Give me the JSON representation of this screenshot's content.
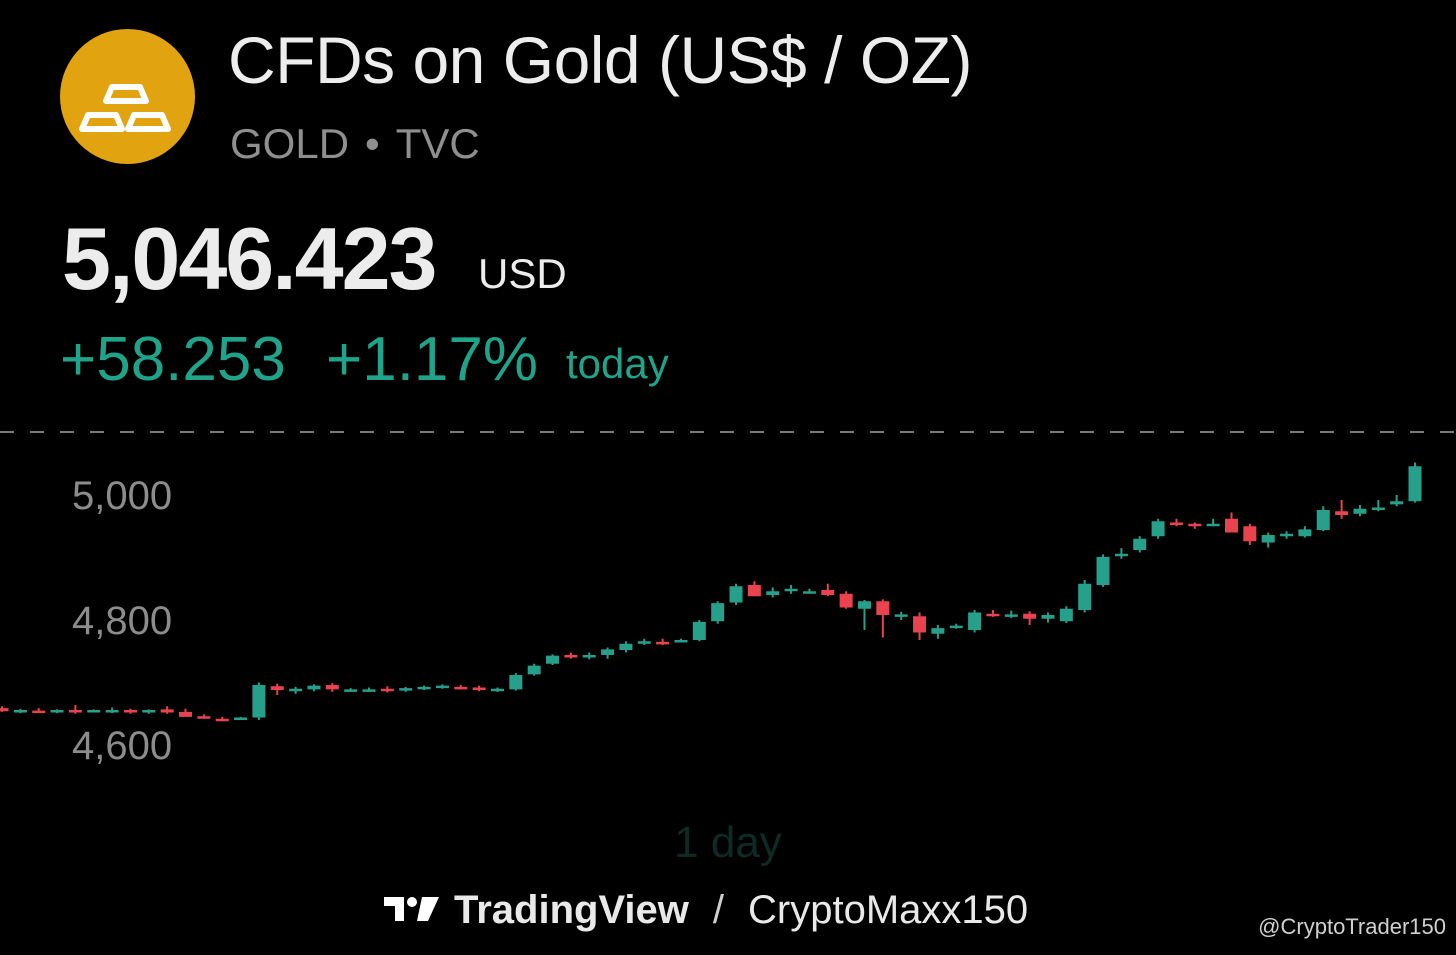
{
  "header": {
    "title": "CFDs on Gold (US$ / OZ)",
    "symbol": "GOLD",
    "separator": "•",
    "exchange": "TVC",
    "logo_icon": "gold-bars-icon",
    "logo_color": "#e2a311"
  },
  "quote": {
    "price": "5,046.423",
    "currency": "USD",
    "change": "+58.253",
    "change_percent": "+1.17%",
    "period_label": "today",
    "up_color": "#1fa389"
  },
  "chart_data": {
    "type": "candlestick",
    "ylim": [
      4530,
      5100
    ],
    "ticks": [
      4600,
      4800,
      5000
    ],
    "tick_labels": [
      "4,600",
      "4,800",
      "5,000"
    ],
    "last_price": 5046.4,
    "up_color": "#26a08a",
    "down_color": "#e8434f",
    "candles": [
      [
        4659,
        4662,
        4653,
        4654
      ],
      [
        4653,
        4658,
        4651,
        4656
      ],
      [
        4655,
        4659,
        4652,
        4653
      ],
      [
        4653,
        4657,
        4651,
        4656
      ],
      [
        4656,
        4664,
        4650,
        4652
      ],
      [
        4655,
        4657,
        4653,
        4656
      ],
      [
        4654,
        4660,
        4651,
        4656
      ],
      [
        4656,
        4658,
        4650,
        4655
      ],
      [
        4653,
        4657,
        4650,
        4656
      ],
      [
        4657,
        4662,
        4650,
        4652
      ],
      [
        4653,
        4658,
        4648,
        4645
      ],
      [
        4646,
        4649,
        4642,
        4644
      ],
      [
        4642,
        4645,
        4638,
        4641
      ],
      [
        4642,
        4645,
        4640,
        4644
      ],
      [
        4644,
        4700,
        4640,
        4696
      ],
      [
        4694,
        4698,
        4680,
        4688
      ],
      [
        4686,
        4693,
        4682,
        4690
      ],
      [
        4689,
        4697,
        4686,
        4695
      ],
      [
        4696,
        4699,
        4685,
        4689
      ],
      [
        4688,
        4691,
        4685,
        4689
      ],
      [
        4688,
        4692,
        4685,
        4689
      ],
      [
        4690,
        4694,
        4684,
        4688
      ],
      [
        4688,
        4693,
        4685,
        4691
      ],
      [
        4690,
        4695,
        4688,
        4693
      ],
      [
        4693,
        4697,
        4690,
        4695
      ],
      [
        4693,
        4696,
        4689,
        4691
      ],
      [
        4692,
        4695,
        4686,
        4688
      ],
      [
        4688,
        4692,
        4685,
        4690
      ],
      [
        4689,
        4715,
        4687,
        4712
      ],
      [
        4713,
        4730,
        4711,
        4727
      ],
      [
        4730,
        4745,
        4728,
        4743
      ],
      [
        4744,
        4748,
        4738,
        4740
      ],
      [
        4741,
        4748,
        4737,
        4744
      ],
      [
        4744,
        4756,
        4738,
        4753
      ],
      [
        4752,
        4766,
        4748,
        4762
      ],
      [
        4764,
        4770,
        4760,
        4766
      ],
      [
        4765,
        4770,
        4760,
        4764
      ],
      [
        4766,
        4770,
        4764,
        4768
      ],
      [
        4768,
        4800,
        4766,
        4797
      ],
      [
        4798,
        4830,
        4794,
        4827
      ],
      [
        4828,
        4858,
        4824,
        4854
      ],
      [
        4856,
        4862,
        4838,
        4838
      ],
      [
        4840,
        4852,
        4836,
        4846
      ],
      [
        4846,
        4856,
        4842,
        4850
      ],
      [
        4846,
        4850,
        4842,
        4846
      ],
      [
        4848,
        4858,
        4838,
        4840
      ],
      [
        4842,
        4846,
        4818,
        4820
      ],
      [
        4818,
        4832,
        4784,
        4830
      ],
      [
        4830,
        4833,
        4772,
        4808
      ],
      [
        4808,
        4813,
        4800,
        4809
      ],
      [
        4806,
        4812,
        4768,
        4780
      ],
      [
        4778,
        4792,
        4770,
        4787
      ],
      [
        4790,
        4794,
        4786,
        4791
      ],
      [
        4784,
        4816,
        4780,
        4812
      ],
      [
        4810,
        4816,
        4805,
        4808
      ],
      [
        4809,
        4815,
        4803,
        4809
      ],
      [
        4810,
        4814,
        4792,
        4802
      ],
      [
        4802,
        4812,
        4796,
        4808
      ],
      [
        4798,
        4822,
        4795,
        4818
      ],
      [
        4816,
        4864,
        4812,
        4858
      ],
      [
        4856,
        4905,
        4853,
        4901
      ],
      [
        4906,
        4915,
        4898,
        4906
      ],
      [
        4912,
        4934,
        4908,
        4930
      ],
      [
        4934,
        4962,
        4930,
        4958
      ],
      [
        4956,
        4962,
        4950,
        4955
      ],
      [
        4954,
        4956,
        4946,
        4952
      ],
      [
        4952,
        4962,
        4950,
        4954
      ],
      [
        4962,
        4972,
        4945,
        4940
      ],
      [
        4950,
        4954,
        4920,
        4926
      ],
      [
        4924,
        4940,
        4916,
        4936
      ],
      [
        4934,
        4942,
        4930,
        4938
      ],
      [
        4934,
        4950,
        4932,
        4945
      ],
      [
        4944,
        4982,
        4942,
        4976
      ],
      [
        4974,
        4992,
        4962,
        4968
      ],
      [
        4970,
        4984,
        4966,
        4978
      ],
      [
        4976,
        4992,
        4974,
        4980
      ],
      [
        4985,
        5000,
        4982,
        4990
      ],
      [
        4990,
        5052,
        4988,
        5046
      ]
    ]
  },
  "chart_period": "1 day",
  "footer": {
    "brand": "TradingView",
    "brand_icon": "tradingview-logo-icon",
    "separator": "/",
    "author": "CryptoMaxx150",
    "handle": "@CryptoTrader150"
  }
}
